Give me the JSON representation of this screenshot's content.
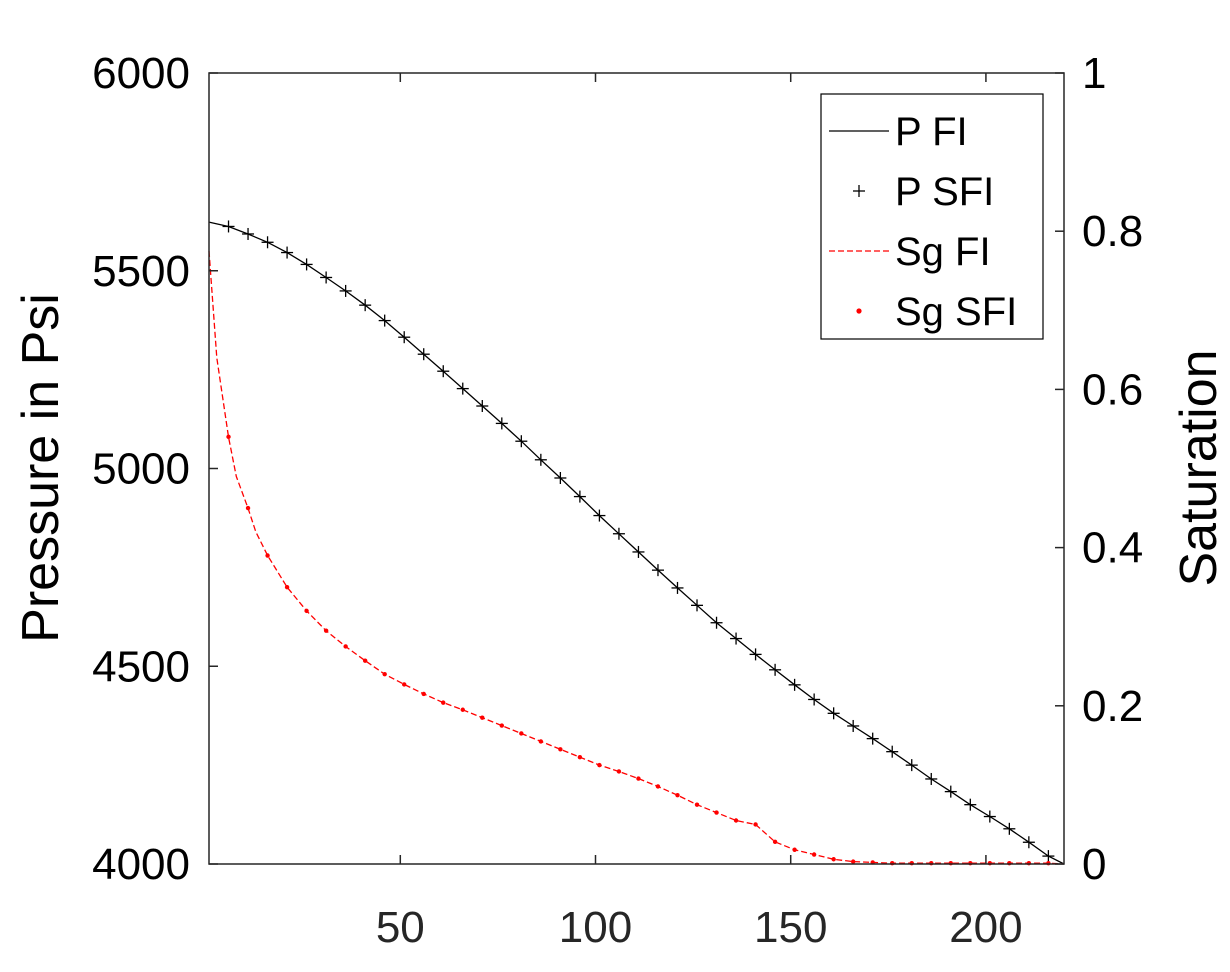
{
  "chart_data": {
    "type": "line",
    "title": "",
    "xlabel": "",
    "ylabel_left": "Pressure in Psi",
    "ylabel_right": "Saturation",
    "xlim": [
      1,
      220
    ],
    "ylim_left": [
      4000,
      6000
    ],
    "ylim_right": [
      0,
      1
    ],
    "x_ticks": [
      "50",
      "100",
      "150",
      "200"
    ],
    "y_left_ticks": [
      "4000",
      "4500",
      "5000",
      "5500",
      "6000"
    ],
    "y_right_ticks": [
      "0",
      "0.2",
      "0.4",
      "0.6",
      "0.8",
      "1"
    ],
    "grid": false,
    "legend_position": "top-right",
    "series": [
      {
        "name": "P FI",
        "axis": "left",
        "style": "solid",
        "color": "#000000",
        "x": [
          1,
          6,
          11,
          16,
          21,
          26,
          31,
          36,
          41,
          46,
          51,
          56,
          61,
          66,
          71,
          76,
          81,
          86,
          91,
          96,
          101,
          106,
          111,
          116,
          121,
          126,
          131,
          136,
          141,
          146,
          151,
          156,
          161,
          166,
          171,
          176,
          181,
          186,
          191,
          196,
          201,
          206,
          211,
          216,
          220
        ],
        "y": [
          5623,
          5612,
          5593,
          5572,
          5546,
          5516,
          5483,
          5449,
          5413,
          5374,
          5332,
          5289,
          5246,
          5202,
          5158,
          5114,
          5069,
          5022,
          4976,
          4929,
          4881,
          4835,
          4789,
          4743,
          4698,
          4654,
          4610,
          4570,
          4530,
          4491,
          4453,
          4416,
          4381,
          4349,
          4317,
          4284,
          4250,
          4215,
          4183,
          4150,
          4120,
          4089,
          4055,
          4020,
          4000
        ]
      },
      {
        "name": "P SFI",
        "axis": "left",
        "style": "plus",
        "color": "#000000",
        "x": [
          6,
          11,
          16,
          21,
          26,
          31,
          36,
          41,
          46,
          51,
          56,
          61,
          66,
          71,
          76,
          81,
          86,
          91,
          96,
          101,
          106,
          111,
          116,
          121,
          126,
          131,
          136,
          141,
          146,
          151,
          156,
          161,
          166,
          171,
          176,
          181,
          186,
          191,
          196,
          201,
          206,
          211,
          216
        ],
        "y": [
          5612,
          5593,
          5572,
          5546,
          5516,
          5483,
          5449,
          5413,
          5374,
          5332,
          5289,
          5246,
          5202,
          5158,
          5114,
          5069,
          5022,
          4976,
          4929,
          4881,
          4835,
          4789,
          4743,
          4698,
          4654,
          4610,
          4570,
          4530,
          4491,
          4453,
          4416,
          4381,
          4349,
          4317,
          4284,
          4250,
          4215,
          4183,
          4150,
          4120,
          4089,
          4055,
          4020
        ]
      },
      {
        "name": "Sg FI",
        "axis": "right",
        "style": "dashed",
        "color": "#ff0000",
        "x": [
          1,
          3,
          6,
          8,
          11,
          13,
          16,
          21,
          26,
          31,
          36,
          41,
          46,
          51,
          56,
          61,
          66,
          71,
          76,
          81,
          86,
          91,
          96,
          101,
          106,
          111,
          116,
          121,
          126,
          131,
          136,
          141,
          146,
          151,
          156,
          161,
          166,
          171,
          176,
          181,
          186,
          191,
          196,
          201,
          206,
          211,
          216,
          220
        ],
        "y": [
          0.775,
          0.64,
          0.54,
          0.49,
          0.45,
          0.42,
          0.39,
          0.35,
          0.32,
          0.295,
          0.275,
          0.257,
          0.24,
          0.227,
          0.215,
          0.204,
          0.195,
          0.185,
          0.175,
          0.165,
          0.155,
          0.145,
          0.135,
          0.125,
          0.117,
          0.108,
          0.098,
          0.087,
          0.075,
          0.065,
          0.055,
          0.05,
          0.028,
          0.018,
          0.012,
          0.006,
          0.003,
          0.002,
          0.001,
          0.001,
          0.001,
          0.001,
          0.001,
          0.001,
          0.001,
          0.001,
          0.001,
          0.0
        ]
      },
      {
        "name": "Sg SFI",
        "axis": "right",
        "style": "dot",
        "color": "#ff0000",
        "x": [
          6,
          11,
          16,
          21,
          26,
          31,
          36,
          41,
          46,
          51,
          56,
          61,
          66,
          71,
          76,
          81,
          86,
          91,
          96,
          101,
          106,
          111,
          116,
          121,
          126,
          131,
          136,
          141,
          146,
          151,
          156,
          161,
          166,
          171,
          176,
          181,
          186,
          191,
          196,
          201,
          206,
          211,
          216
        ],
        "y": [
          0.54,
          0.45,
          0.39,
          0.35,
          0.32,
          0.295,
          0.275,
          0.257,
          0.24,
          0.227,
          0.215,
          0.204,
          0.195,
          0.185,
          0.175,
          0.165,
          0.155,
          0.145,
          0.135,
          0.125,
          0.117,
          0.108,
          0.098,
          0.087,
          0.075,
          0.065,
          0.055,
          0.05,
          0.028,
          0.018,
          0.012,
          0.006,
          0.003,
          0.002,
          0.001,
          0.001,
          0.001,
          0.001,
          0.001,
          0.001,
          0.001,
          0.001,
          0.001
        ]
      }
    ]
  }
}
